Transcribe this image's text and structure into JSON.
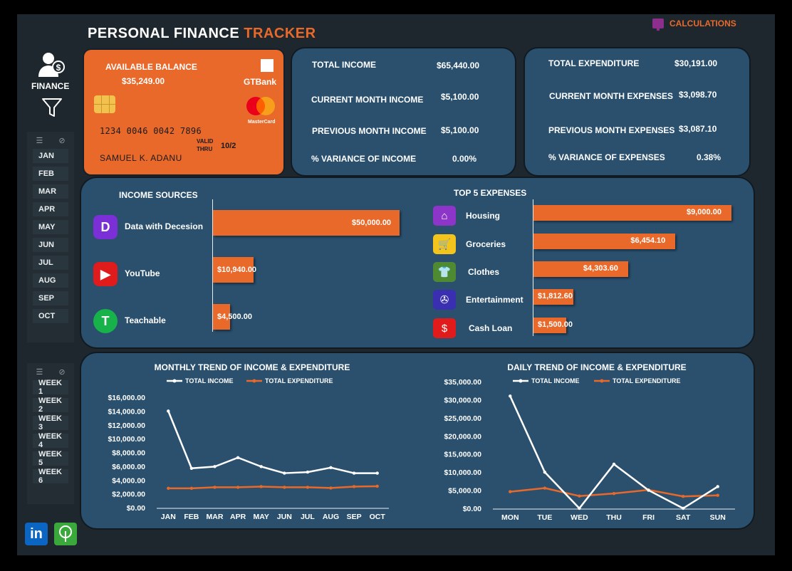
{
  "header": {
    "title_main": "PERSONAL FINANCE",
    "title_accent": "TRACKER",
    "calculations_label": "CALCULATIONS",
    "finance_label": "FINANCE"
  },
  "months": [
    "JAN",
    "FEB",
    "MAR",
    "APR",
    "MAY",
    "JUN",
    "JUL",
    "AUG",
    "SEP",
    "OCT"
  ],
  "weeks": [
    "WEEK 1",
    "WEEK 2",
    "WEEK 3",
    "WEEK 4",
    "WEEK 5",
    "WEEK 6"
  ],
  "card": {
    "available_label": "AVAILABLE BALANCE",
    "available_value": "$35,249.00",
    "bank": "GTBank",
    "brand": "MasterCard",
    "number": "1234 0046 0042 7896",
    "valid_thru_1": "VALID",
    "valid_thru_2": "THRU",
    "valid_value": "10/2",
    "holder": "SAMUEL K. ADANU"
  },
  "income_kpis": [
    {
      "label": "TOTAL INCOME",
      "value": "$65,440.00"
    },
    {
      "label": "CURRENT MONTH INCOME",
      "value": "$5,100.00"
    },
    {
      "label": "PREVIOUS MONTH INCOME",
      "value": "$5,100.00"
    },
    {
      "label": "% VARIANCE OF INCOME",
      "value": "0.00%"
    }
  ],
  "expense_kpis": [
    {
      "label": "TOTAL EXPENDITURE",
      "value": "$30,191.00"
    },
    {
      "label": "CURRENT MONTH EXPENSES",
      "value": "$3,098.70"
    },
    {
      "label": "PREVIOUS MONTH EXPENSES",
      "value": "$3,087.10"
    },
    {
      "label": "% VARIANCE OF EXPENSES",
      "value": "0.38%"
    }
  ],
  "income_sources": {
    "title": "INCOME SOURCES",
    "items": [
      {
        "name": "Data with Decesion",
        "value": 50000,
        "label": "$50,000.00",
        "icon": "data-with-decision-logo",
        "color": "#7b2fd6",
        "glyph": "D"
      },
      {
        "name": "YouTube",
        "value": 10940,
        "label": "$10,940.00",
        "icon": "youtube-logo",
        "color": "#e01b1b",
        "glyph": "▶"
      },
      {
        "name": "Teachable",
        "value": 4500,
        "label": "$4,500.00",
        "icon": "teachable-logo",
        "color": "#17b24a",
        "glyph": "T"
      }
    ]
  },
  "top_expenses": {
    "title": "TOP 5 EXPENSES",
    "items": [
      {
        "name": "Housing",
        "value": 9000,
        "label": "$9,000.00",
        "icon": "house-icon",
        "color": "#8e35c9",
        "glyph": "⌂"
      },
      {
        "name": "Groceries",
        "value": 6454.1,
        "label": "$6,454.10",
        "icon": "groceries-icon",
        "color": "#f2c41c",
        "glyph": "🛒"
      },
      {
        "name": "Clothes",
        "value": 4303.6,
        "label": "$4,303.60",
        "icon": "shirt-icon",
        "color": "#4f8a33",
        "glyph": "👕"
      },
      {
        "name": "Entertainment",
        "value": 1812.6,
        "label": "$1,812.60",
        "icon": "film-reel-icon",
        "color": "#3a2fb0",
        "glyph": "✇"
      },
      {
        "name": "Cash Loan",
        "value": 1500,
        "label": "$1,500.00",
        "icon": "cash-loan-icon",
        "color": "#e01b1b",
        "glyph": "$"
      }
    ]
  },
  "accent_color": "#e8692a",
  "panel_color": "#2a506e",
  "chart_data": [
    {
      "type": "line",
      "title": "MONTHLY TREND OF INCOME & EXPENDITURE",
      "categories": [
        "JAN",
        "FEB",
        "MAR",
        "APR",
        "MAY",
        "JUN",
        "JUL",
        "AUG",
        "SEP",
        "OCT"
      ],
      "series": [
        {
          "name": "TOTAL INCOME",
          "color": "#ffffff",
          "values": [
            14000,
            5700,
            5950,
            7250,
            5950,
            5000,
            5150,
            5800,
            5000,
            5000
          ]
        },
        {
          "name": "TOTAL EXPENDITURE",
          "color": "#e8692a",
          "values": [
            2800,
            2800,
            2950,
            2950,
            3050,
            2950,
            2950,
            2850,
            3050,
            3100
          ]
        }
      ],
      "ylim": [
        0,
        16000
      ],
      "yticks": [
        "$0.00",
        "$2,000.00",
        "$4,000.00",
        "$6,000.00",
        "$8,000.00",
        "$10,000.00",
        "$12,000.00",
        "$14,000.00",
        "$16,000.00"
      ],
      "legend": "top"
    },
    {
      "type": "line",
      "title": "DAILY TREND OF INCOME & EXPENDITURE",
      "categories": [
        "MON",
        "TUE",
        "WED",
        "THU",
        "FRI",
        "SAT",
        "SUN"
      ],
      "series": [
        {
          "name": "TOTAL INCOME",
          "color": "#ffffff",
          "values": [
            31000,
            10000,
            0,
            12200,
            5000,
            0,
            6000
          ]
        },
        {
          "name": "TOTAL EXPENDITURE",
          "color": "#e8692a",
          "values": [
            4600,
            5600,
            3400,
            4100,
            5100,
            3300,
            3600
          ]
        }
      ],
      "ylim": [
        0,
        35000
      ],
      "yticks": [
        "$0.00",
        "$5,000.00",
        "$10,000.00",
        "$15,000.00",
        "$20,000.00",
        "$25,000.00",
        "$30,000.00",
        "$35,000.00"
      ],
      "legend": "top"
    }
  ]
}
